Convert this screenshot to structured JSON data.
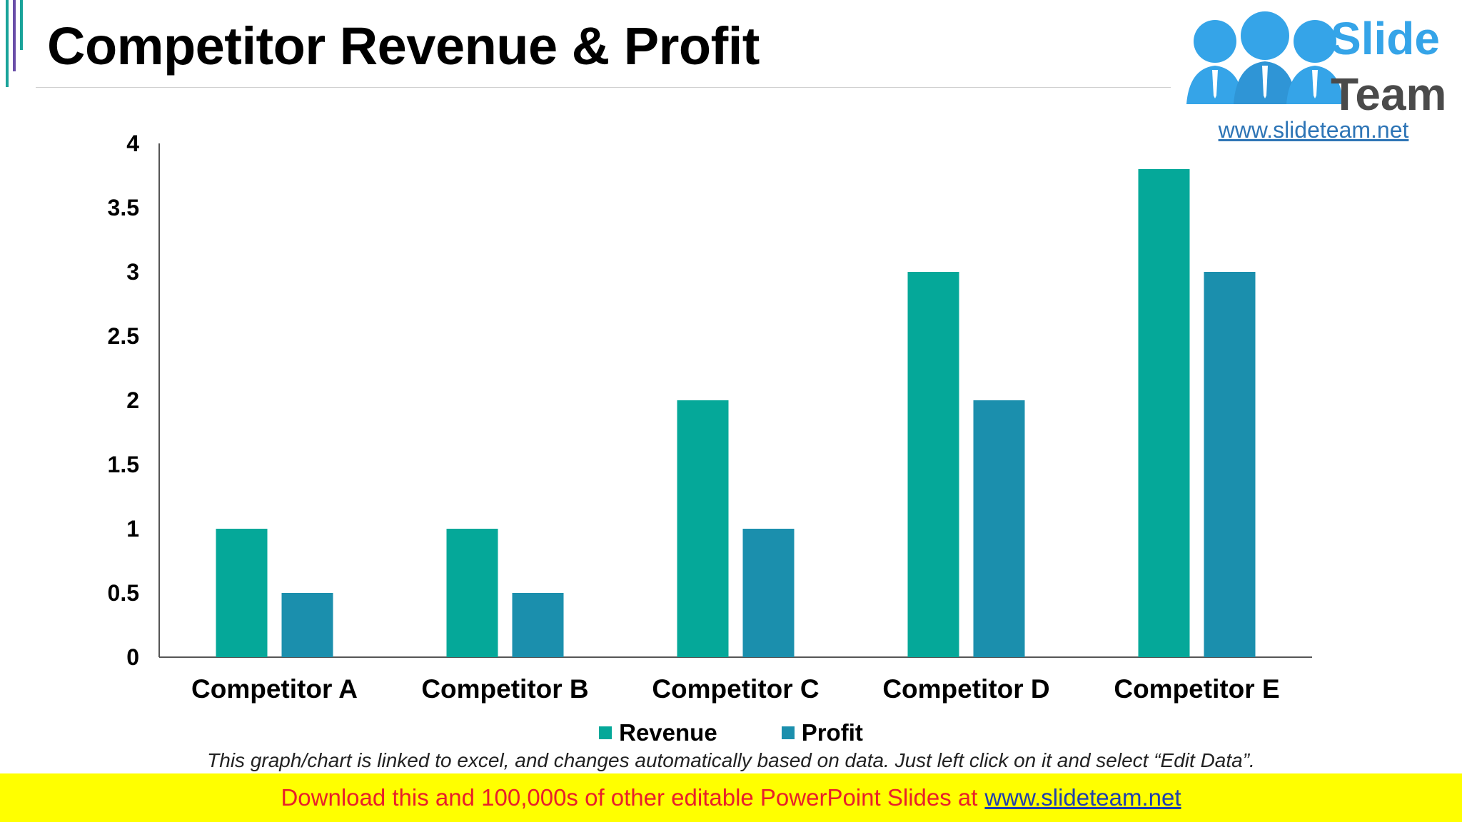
{
  "title": "Competitor Revenue & Profit",
  "logo": {
    "line1": "Slide",
    "line2": "Team",
    "url": "www.slideteam.net"
  },
  "note": "This graph/chart is linked to excel, and changes automatically based on data. Just left click on it and select “Edit Data”.",
  "footer": {
    "text": "Download this and 100,000s of other editable PowerPoint Slides at",
    "link": "www.slideteam.net"
  },
  "colors": {
    "revenue": "#05a899",
    "profit": "#1b8fad",
    "footer_bg": "#ffff00",
    "footer_text": "#e8202a"
  },
  "chart_data": {
    "type": "bar",
    "title": "Competitor Revenue & Profit",
    "categories": [
      "Competitor A",
      "Competitor B",
      "Competitor C",
      "Competitor D",
      "Competitor E"
    ],
    "series": [
      {
        "name": "Revenue",
        "values": [
          1,
          1,
          2,
          3,
          3.8
        ]
      },
      {
        "name": "Profit",
        "values": [
          0.5,
          0.5,
          1,
          2,
          3
        ]
      }
    ],
    "yticks": [
      "0",
      "0.5",
      "1",
      "1.5",
      "2",
      "2.5",
      "3",
      "3.5",
      "4"
    ],
    "ylim": [
      0,
      4
    ],
    "grid": false,
    "legend": "bottom"
  }
}
